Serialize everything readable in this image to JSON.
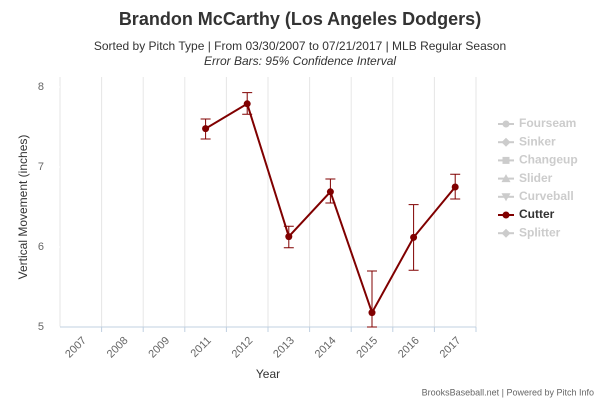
{
  "chart_data": {
    "type": "line",
    "title": "Brandon McCarthy (Los Angeles Dodgers)",
    "subtitle": "Sorted by Pitch Type | From 03/30/2007 to 07/21/2017 | MLB Regular Season",
    "note": "Error Bars: 95% Confidence Interval",
    "credit": "BrooksBaseball.net | Powered by Pitch Info",
    "x_label": "Year",
    "y_label": "Vertical Movement (inches)",
    "categories": [
      "2007",
      "2008",
      "2009",
      "2011",
      "2012",
      "2013",
      "2014",
      "2015",
      "2016",
      "2017"
    ],
    "ylim": [
      5,
      8
    ],
    "yticks": [
      5,
      6,
      7,
      8
    ],
    "legend_position": "right",
    "series": [
      {
        "name": "Fourseam",
        "color": "#cccccc",
        "symbol": "circle",
        "visible": false,
        "values": [
          null,
          null,
          null,
          null,
          null,
          null,
          null,
          null,
          null,
          null
        ]
      },
      {
        "name": "Sinker",
        "color": "#cccccc",
        "symbol": "diamond",
        "visible": false,
        "values": [
          null,
          null,
          null,
          null,
          null,
          null,
          null,
          null,
          null,
          null
        ]
      },
      {
        "name": "Changeup",
        "color": "#cccccc",
        "symbol": "square",
        "visible": false,
        "values": [
          null,
          null,
          null,
          null,
          null,
          null,
          null,
          null,
          null,
          null
        ]
      },
      {
        "name": "Slider",
        "color": "#cccccc",
        "symbol": "triangle",
        "visible": false,
        "values": [
          null,
          null,
          null,
          null,
          null,
          null,
          null,
          null,
          null,
          null
        ]
      },
      {
        "name": "Curveball",
        "color": "#cccccc",
        "symbol": "triangle-down",
        "visible": false,
        "values": [
          null,
          null,
          null,
          null,
          null,
          null,
          null,
          null,
          null,
          null
        ]
      },
      {
        "name": "Cutter",
        "color": "#800000",
        "symbol": "circle",
        "visible": true,
        "values": [
          null,
          null,
          null,
          7.48,
          7.79,
          6.13,
          6.69,
          5.18,
          6.12,
          6.75
        ],
        "lower": [
          null,
          null,
          null,
          7.35,
          7.66,
          5.99,
          6.55,
          5.0,
          5.71,
          6.6
        ],
        "upper": [
          null,
          null,
          null,
          7.6,
          7.93,
          6.26,
          6.85,
          5.7,
          6.53,
          6.91
        ]
      },
      {
        "name": "Splitter",
        "color": "#cccccc",
        "symbol": "diamond",
        "visible": false,
        "values": [
          null,
          null,
          null,
          null,
          null,
          null,
          null,
          null,
          null,
          null
        ]
      }
    ]
  }
}
